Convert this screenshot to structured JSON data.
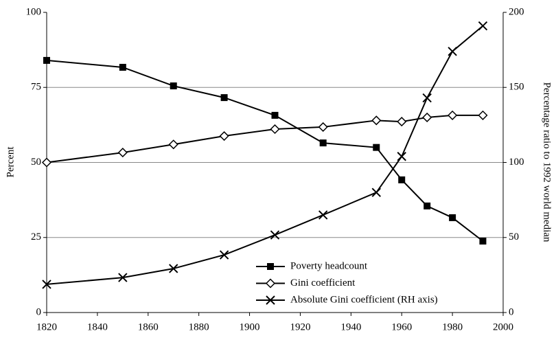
{
  "chart_data": {
    "type": "line",
    "x": [
      1820,
      1850,
      1870,
      1890,
      1910,
      1929,
      1950,
      1960,
      1970,
      1980,
      1992
    ],
    "series": [
      {
        "name": "Poverty headcount",
        "color": "#000000",
        "marker": "square",
        "values": [
          84,
          81.7,
          75.5,
          71.6,
          65.7,
          56.5,
          55,
          44.2,
          35.5,
          31.6,
          23.8
        ]
      },
      {
        "name": "Gini coefficient",
        "color": "#000000",
        "marker": "diamond",
        "values": [
          50,
          53.3,
          56,
          58.8,
          61.1,
          61.8,
          64,
          63.6,
          65,
          65.7,
          65.7
        ]
      },
      {
        "name": "Absolute Gini coefficient (RH axis)",
        "color": "#000000",
        "marker": "x",
        "axis": "y2",
        "values": [
          18.8,
          23.3,
          29.3,
          38.4,
          51.7,
          65,
          80,
          104,
          143,
          174,
          191
        ]
      }
    ],
    "ylabel": "Percent",
    "y2label": "Percentage ratio to 1992 world median",
    "xlim": [
      1820,
      2000
    ],
    "xticks": [
      1820,
      1840,
      1860,
      1880,
      1900,
      1920,
      1940,
      1960,
      1980,
      2000
    ],
    "ylim": [
      0,
      100
    ],
    "yticks": [
      0,
      25,
      50,
      75,
      100
    ],
    "y2lim": [
      0,
      200
    ],
    "y2ticks": [
      0,
      50,
      100,
      150,
      200
    ],
    "grid": true,
    "legend": "lower right"
  }
}
